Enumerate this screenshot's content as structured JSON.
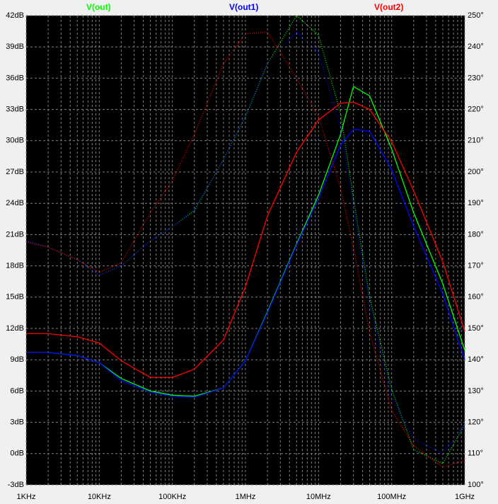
{
  "chart_data": {
    "type": "line",
    "xscale": "log",
    "x": [
      1000,
      2000,
      5000,
      10000,
      20000,
      50000,
      100000,
      200000,
      500000,
      1000000,
      2000000,
      5000000,
      10000000,
      20000000,
      30000000,
      50000000,
      100000000,
      200000000,
      500000000,
      1000000000
    ],
    "series": [
      {
        "name": "V(out)",
        "color": "#00ff00",
        "values": [
          9.7,
          9.7,
          9.4,
          8.7,
          7.2,
          6.0,
          5.6,
          5.5,
          6.3,
          8.9,
          13.6,
          20.1,
          24.8,
          30.6,
          35.2,
          34.3,
          29.2,
          23.1,
          16.3,
          9.9
        ],
        "phase": [
          178,
          176,
          172,
          167,
          170,
          178,
          182.6,
          187.6,
          204,
          217.7,
          234.6,
          250,
          243.7,
          218.8,
          191.6,
          160,
          130.6,
          111.3,
          106.8,
          119.3
        ]
      },
      {
        "name": "V(out1)",
        "color": "#0000ff",
        "values": [
          9.7,
          9.7,
          9.4,
          8.7,
          7.0,
          5.9,
          5.5,
          5.4,
          6.3,
          8.9,
          13.5,
          20,
          24.5,
          29.6,
          31.1,
          30.9,
          27.2,
          21.8,
          15.3,
          9.0
        ],
        "phase": [
          178,
          176,
          172,
          167,
          170,
          178,
          182.6,
          188,
          204,
          218,
          235,
          244.8,
          238,
          214,
          189,
          157.7,
          128,
          114.7,
          110,
          119.3
        ]
      },
      {
        "name": "V(out2)",
        "color": "#ff0000",
        "values": [
          11.5,
          11.5,
          11.2,
          10.6,
          8.9,
          7.3,
          7.3,
          8.1,
          10.9,
          16,
          22.8,
          28.9,
          32,
          33.6,
          33.7,
          33.0,
          29.9,
          25.2,
          18.4,
          11.7
        ],
        "phase": [
          177.6,
          176,
          172,
          167.9,
          171,
          187,
          197.3,
          212,
          234.6,
          244.1,
          244.8,
          230,
          217.7,
          195,
          175.8,
          148.7,
          123.8,
          112.5,
          105.7,
          107.9
        ]
      }
    ],
    "xlim": [
      1000,
      1000000000
    ],
    "xticks": [
      {
        "value": 1000,
        "label": "1KHz"
      },
      {
        "value": 10000,
        "label": "10KHz"
      },
      {
        "value": 100000,
        "label": "100KHz"
      },
      {
        "value": 1000000,
        "label": "1MHz"
      },
      {
        "value": 10000000,
        "label": "10MHz"
      },
      {
        "value": 100000000,
        "label": "100MHz"
      },
      {
        "value": 1000000000,
        "label": "1GHz"
      }
    ],
    "xminorticks": [
      2000,
      3000,
      4000,
      5000,
      6000,
      7000,
      8000,
      9000,
      20000,
      30000,
      40000,
      50000,
      60000,
      70000,
      80000,
      90000,
      200000,
      300000,
      400000,
      500000,
      600000,
      700000,
      800000,
      900000,
      2000000,
      3000000,
      4000000,
      5000000,
      6000000,
      7000000,
      8000000,
      9000000,
      20000000,
      30000000,
      40000000,
      50000000,
      60000000,
      70000000,
      80000000,
      90000000,
      200000000,
      300000000,
      400000000,
      500000000,
      600000000,
      700000000,
      800000000,
      900000000
    ],
    "ylim": [
      -3,
      42
    ],
    "yticks": [
      {
        "value": -3,
        "label": "-3dB"
      },
      {
        "value": 0,
        "label": "0dB"
      },
      {
        "value": 3,
        "label": "3dB"
      },
      {
        "value": 6,
        "label": "6dB"
      },
      {
        "value": 9,
        "label": "9dB"
      },
      {
        "value": 12,
        "label": "12dB"
      },
      {
        "value": 15,
        "label": "15dB"
      },
      {
        "value": 18,
        "label": "18dB"
      },
      {
        "value": 21,
        "label": "21dB"
      },
      {
        "value": 24,
        "label": "24dB"
      },
      {
        "value": 27,
        "label": "27dB"
      },
      {
        "value": 30,
        "label": "30dB"
      },
      {
        "value": 33,
        "label": "33dB"
      },
      {
        "value": 36,
        "label": "36dB"
      },
      {
        "value": 39,
        "label": "39dB"
      },
      {
        "value": 42,
        "label": "42dB"
      }
    ],
    "y2lim": [
      100,
      250
    ],
    "y2ticks": [
      {
        "value": 100,
        "label": "100°"
      },
      {
        "value": 110,
        "label": "110°"
      },
      {
        "value": 120,
        "label": "120°"
      },
      {
        "value": 130,
        "label": "130°"
      },
      {
        "value": 140,
        "label": "140°"
      },
      {
        "value": 150,
        "label": "150°"
      },
      {
        "value": 160,
        "label": "160°"
      },
      {
        "value": 170,
        "label": "170°"
      },
      {
        "value": 180,
        "label": "180°"
      },
      {
        "value": 190,
        "label": "190°"
      },
      {
        "value": 200,
        "label": "200°"
      },
      {
        "value": 210,
        "label": "210°"
      },
      {
        "value": 220,
        "label": "220°"
      },
      {
        "value": 230,
        "label": "230°"
      },
      {
        "value": 240,
        "label": "240°"
      },
      {
        "value": 250,
        "label": "250°"
      }
    ],
    "grid": true
  }
}
